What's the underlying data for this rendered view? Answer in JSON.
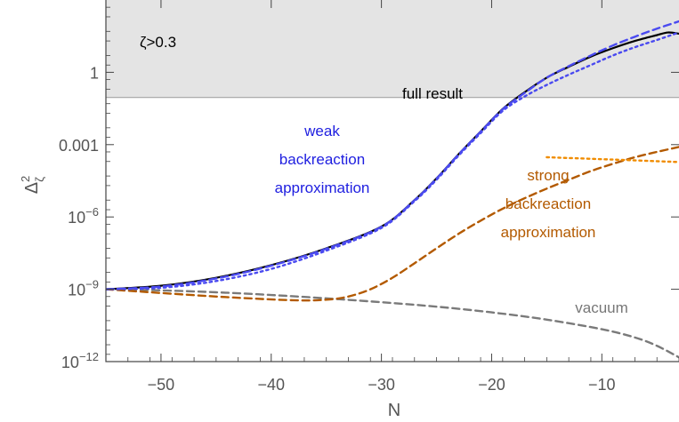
{
  "chart_data": {
    "type": "line",
    "xlabel": "N",
    "ylabel": "Δ²ζ",
    "ylabel_main": "Δ",
    "ylabel_sup": "2",
    "ylabel_sub": "ζ",
    "y_scale": "log",
    "xlim": [
      -55,
      -3
    ],
    "ylim": [
      1e-12,
      1000
    ],
    "x_ticks": [
      -50,
      -40,
      -30,
      -20,
      -10
    ],
    "x_tick_labels": [
      "−50",
      "−40",
      "−30",
      "−20",
      "−10"
    ],
    "y_ticks": [
      {
        "value": 1,
        "base": "1",
        "exp": ""
      },
      {
        "value": 0.001,
        "base": "0.001",
        "exp": ""
      },
      {
        "value": 1e-06,
        "base": "10",
        "exp": "−6"
      },
      {
        "value": 1e-09,
        "base": "10",
        "exp": "−9"
      },
      {
        "value": 1e-12,
        "base": "10",
        "exp": "−12"
      }
    ],
    "shaded_region": {
      "label": "ζ>0.3",
      "y_from": 0.09,
      "y_to": 1000,
      "color": "#e4e4e4"
    },
    "series": [
      {
        "label": "full result",
        "color": "#000000",
        "style": "solid",
        "x": [
          -55,
          -50,
          -45,
          -40,
          -35,
          -30,
          -27,
          -25,
          -23,
          -21,
          -19,
          -17,
          -15,
          -13,
          -11,
          -9,
          -7,
          -5,
          -4,
          -3
        ],
        "y": [
          1e-09,
          1.4e-09,
          3e-09,
          1e-08,
          5e-08,
          4e-07,
          5e-06,
          4e-05,
          0.0004,
          0.0035,
          0.03,
          0.15,
          0.6,
          1.7,
          4.5,
          10,
          20,
          35,
          45,
          40
        ]
      },
      {
        "label": "weak backreaction approximation",
        "color": "#4a4af0",
        "style": "dotted",
        "x": [
          -55,
          -50,
          -45,
          -40,
          -35,
          -30,
          -27,
          -25,
          -23,
          -21,
          -19,
          -17,
          -15,
          -13,
          -11,
          -9,
          -7,
          -5,
          -3
        ],
        "y": [
          1e-09,
          1.15e-09,
          2.2e-09,
          7e-09,
          4e-08,
          3.5e-07,
          4.5e-06,
          3.5e-05,
          0.00035,
          0.003,
          0.025,
          0.1,
          0.3,
          0.8,
          2,
          5,
          11,
          22,
          45
        ]
      },
      {
        "label": "",
        "color": "#4a4af0",
        "style": "dashed",
        "x": [
          -55,
          -50,
          -45,
          -40,
          -35,
          -30,
          -27,
          -25,
          -23,
          -21,
          -19,
          -17,
          -15,
          -13,
          -11,
          -9,
          -7,
          -5,
          -3
        ],
        "y": [
          1e-09,
          1.3e-09,
          2.8e-09,
          9.5e-09,
          4.8e-08,
          3.9e-07,
          4.9e-06,
          3.9e-05,
          0.00039,
          0.0034,
          0.029,
          0.14,
          0.6,
          1.8,
          5,
          13,
          30,
          65,
          130
        ]
      },
      {
        "label": "strong backreaction approximation",
        "color": "#b35a00",
        "style": "dashed",
        "x": [
          -55,
          -45,
          -38,
          -35,
          -33,
          -31,
          -29,
          -27,
          -25,
          -23,
          -21,
          -19,
          -17,
          -15,
          -13,
          -11,
          -9,
          -7,
          -5,
          -3
        ],
        "y": [
          1e-09,
          5e-10,
          3.5e-10,
          3.7e-10,
          5e-10,
          1e-09,
          3e-09,
          1.2e-08,
          5e-08,
          2e-07,
          7e-07,
          2.2e-06,
          6e-06,
          1.5e-05,
          3.5e-05,
          8e-05,
          0.00016,
          0.0003,
          0.0005,
          0.0008
        ]
      },
      {
        "label": "",
        "color": "#f08c00",
        "style": "dotted",
        "x": [
          -15,
          -9,
          -3
        ],
        "y": [
          0.0003,
          0.00024,
          0.00019
        ]
      },
      {
        "label": "vacuum",
        "color": "#7a7a7a",
        "style": "dashed",
        "x": [
          -55,
          -50,
          -45,
          -40,
          -35,
          -30,
          -25,
          -20,
          -15,
          -10,
          -7,
          -5,
          -3
        ],
        "y": [
          1e-09,
          9e-10,
          7.5e-10,
          5.8e-10,
          4.2e-10,
          2.9e-10,
          1.9e-10,
          1.1e-10,
          5.5e-11,
          2.2e-11,
          1e-11,
          4.5e-12,
          1.5e-12
        ]
      }
    ],
    "annotations": [
      {
        "id": "ann-shaded",
        "lines": [
          "ζ>0.3"
        ],
        "color": "#000000"
      },
      {
        "id": "ann-full",
        "lines": [
          "full result"
        ],
        "color": "#000000"
      },
      {
        "id": "ann-weak",
        "lines": [
          "weak",
          "backreaction",
          "approximation"
        ],
        "color": "#2020e0"
      },
      {
        "id": "ann-strong",
        "lines": [
          "strong",
          "backreaction",
          "approximation"
        ],
        "color": "#b35a00"
      },
      {
        "id": "ann-vacuum",
        "lines": [
          "vacuum"
        ],
        "color": "#777777"
      }
    ]
  }
}
